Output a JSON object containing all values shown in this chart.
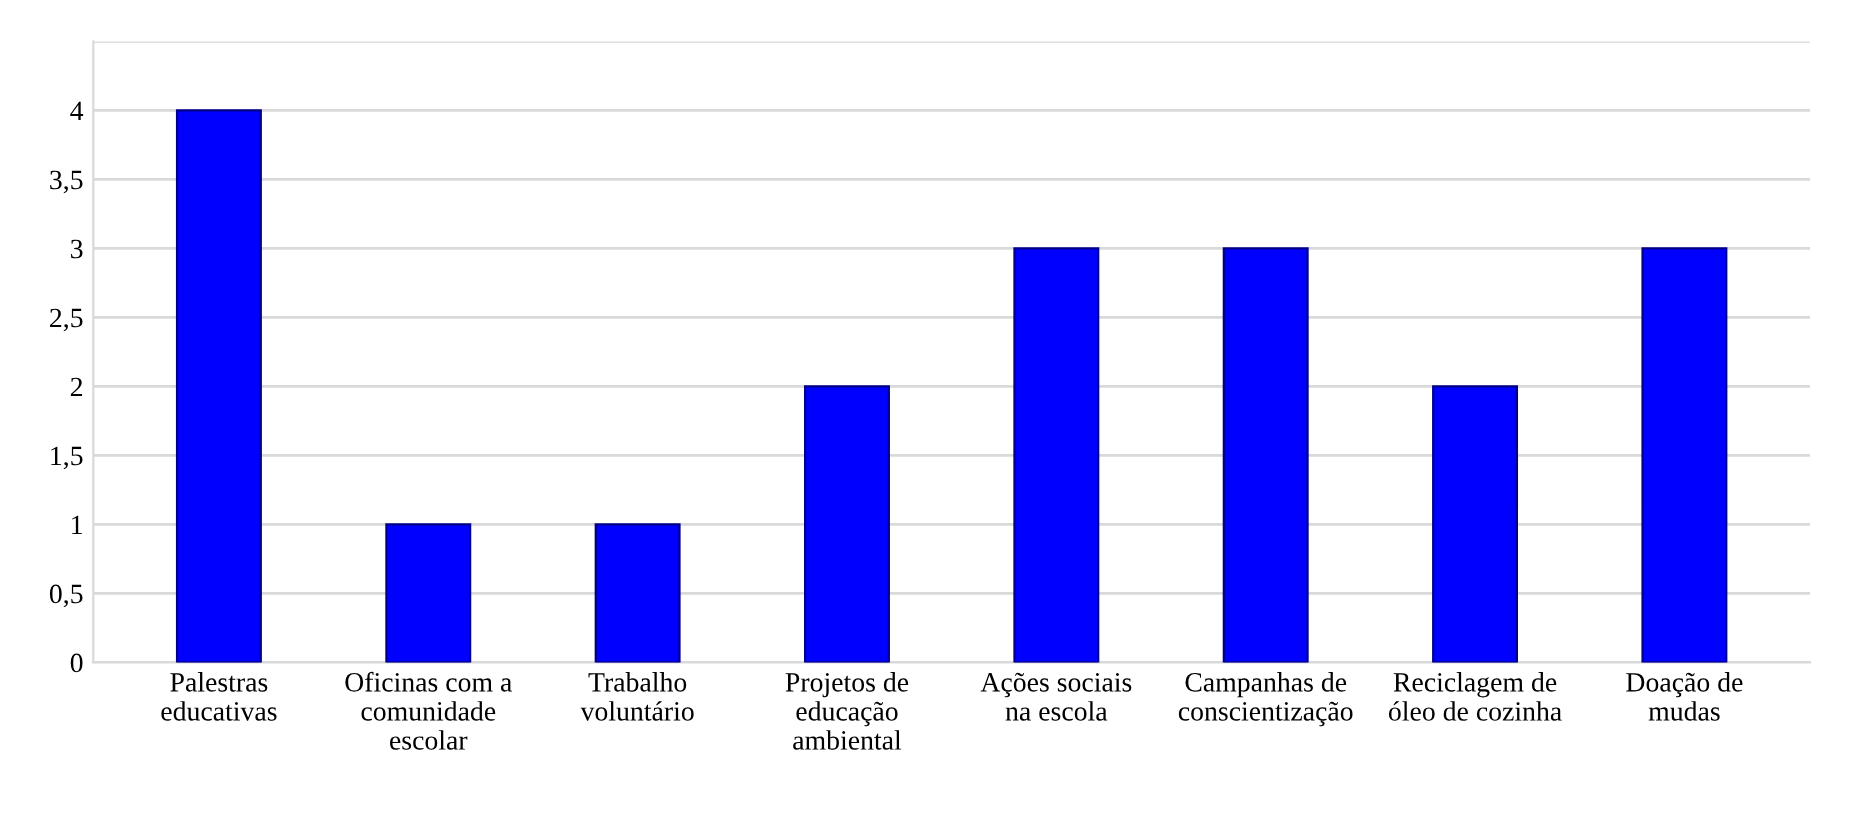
{
  "chart_data": {
    "type": "bar",
    "categories": [
      "Palestras\neducativas",
      "Oficinas com a\ncomunidade\nescolar",
      "Trabalho\nvoluntário",
      "Projetos de\neducação\nambiental",
      "Ações sociais\nna escola",
      "Campanhas de\nconscientização",
      "Reciclagem de\nóleo de cozinha",
      "Doação de\nmudas"
    ],
    "values": [
      4,
      1,
      1,
      2,
      3,
      3,
      2,
      3
    ],
    "color": "#0000ff",
    "ylim": [
      0,
      4.5
    ],
    "yticks": [
      0,
      {
        "value": 0.5,
        "label": "0,5"
      },
      1,
      {
        "value": 1.5,
        "label": "1,5"
      },
      2,
      {
        "value": 2.5,
        "label": "2,5"
      },
      3,
      {
        "value": 3.5,
        "label": "3,5"
      },
      4,
      {
        "value": 4.5,
        "label": null
      }
    ],
    "grid": "y"
  }
}
